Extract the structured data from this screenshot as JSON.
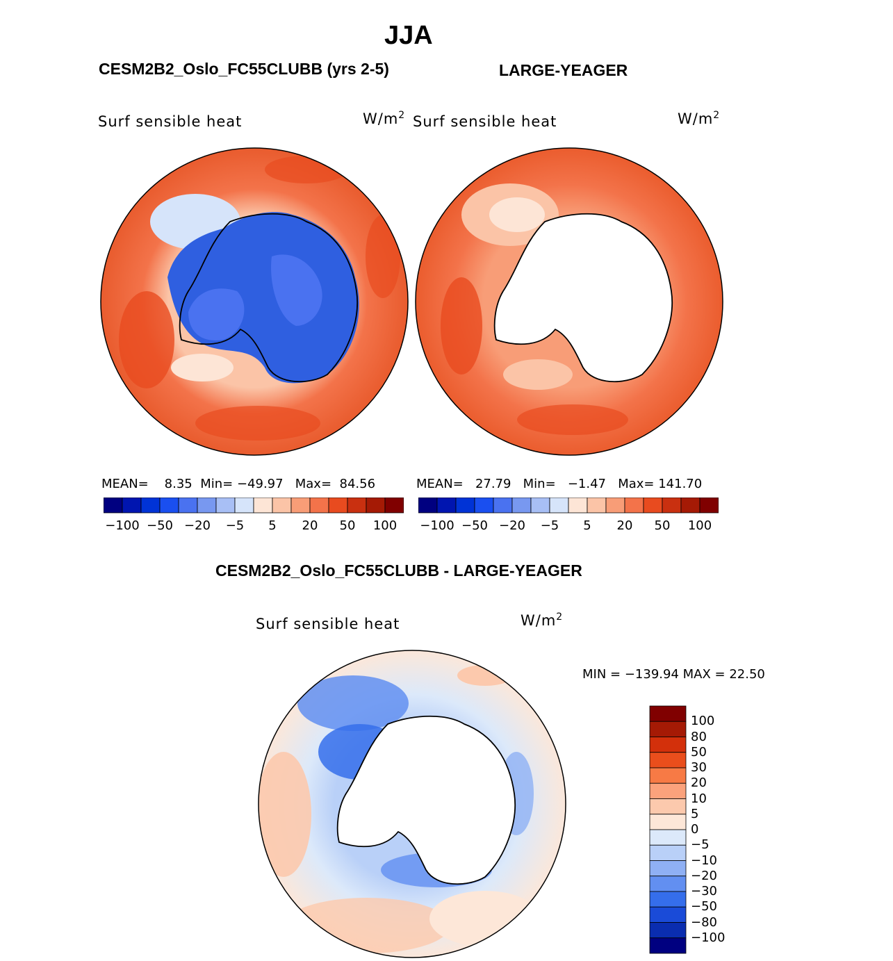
{
  "header": {
    "season": "JJA",
    "left_case": "CESM2B2_Oslo_FC55CLUBB (yrs 2-5)",
    "right_case": "LARGE-YEAGER",
    "diff_title": "CESM2B2_Oslo_FC55CLUBB - LARGE-YEAGER"
  },
  "panels": {
    "left": {
      "variable": "Surf  sensible  heat",
      "units": "W/m",
      "units_exp": "2",
      "mean_label": "MEAN=",
      "mean": "8.35",
      "min_label": "Min=",
      "min": "−49.97",
      "max_label": "Max=",
      "max": "84.56"
    },
    "right": {
      "variable": "Surf  sensible  heat",
      "units": "W/m",
      "units_exp": "2",
      "mean_label": "MEAN=",
      "mean": "27.79",
      "min_label": "Min=",
      "min": "−1.47",
      "max_label": "Max=",
      "max": "141.70"
    },
    "diff": {
      "variable": "Surf  sensible  heat",
      "units": "W/m",
      "units_exp": "2",
      "minmax": "MIN = −139.94  MAX =   22.50"
    }
  },
  "colorbar_horizontal": {
    "colors": [
      "#000080",
      "#0015b0",
      "#0033d6",
      "#1a4ff0",
      "#4a72f0",
      "#7898f0",
      "#a8bff5",
      "#d6e4fa",
      "#fde5d6",
      "#fbc4a7",
      "#f89d77",
      "#f3734a",
      "#e84b1f",
      "#c93010",
      "#a51a05",
      "#800000"
    ],
    "labels": [
      "−100",
      "−50",
      "−20",
      "−5",
      "5",
      "20",
      "50",
      "100"
    ]
  },
  "colorbar_vertical": {
    "colors": [
      "#800000",
      "#a51a05",
      "#d3300b",
      "#ea4e1c",
      "#f77a45",
      "#fba27c",
      "#fcc9ad",
      "#fde7d8",
      "#dce9fa",
      "#b9d0f8",
      "#8fb0f4",
      "#628ff1",
      "#356eeb",
      "#1a4bd8",
      "#0a2db0",
      "#000080"
    ],
    "labels": [
      "100",
      "80",
      "50",
      "30",
      "20",
      "10",
      "5",
      "0",
      "−5",
      "−10",
      "−20",
      "−30",
      "−50",
      "−80",
      "−100"
    ]
  }
}
